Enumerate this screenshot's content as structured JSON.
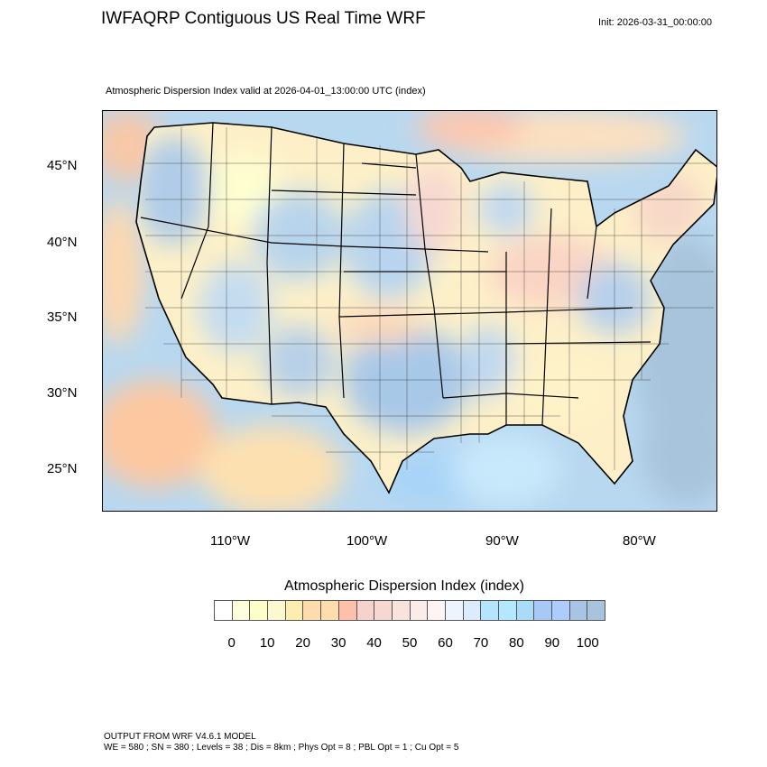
{
  "header": {
    "title": "IWFAQRP Contiguous US Real Time WRF",
    "init": "Init: 2026-03-31_00:00:00",
    "subtitle": "Atmospheric Dispersion Index valid at 2026-04-01_13:00:00 UTC   (index)"
  },
  "map": {
    "projection": "Lambert conformal",
    "lat_labels": [
      "45°N",
      "40°N",
      "35°N",
      "30°N",
      "25°N"
    ],
    "lon_labels": [
      "110°W",
      "100°W",
      "90°W",
      "80°W"
    ],
    "boundaries": [
      "coastlines",
      "state borders",
      "county borders",
      "national borders"
    ]
  },
  "colorbar": {
    "title": "Atmospheric Dispersion Index  (index)",
    "labels": [
      "0",
      "10",
      "20",
      "30",
      "40",
      "50",
      "60",
      "70",
      "80",
      "90",
      "100"
    ],
    "colors": [
      "#ffffff",
      "#fefedc",
      "#fefec8",
      "#fcf8d0",
      "#fdeeb0",
      "#fedcae",
      "#fedcac",
      "#fec0a8",
      "#f6d2cc",
      "#f6d8d0",
      "#f8e4dc",
      "#fcece8",
      "#fff4f4",
      "#eef4fe",
      "#dcecfe",
      "#b4e4fe",
      "#b4e8fe",
      "#a8dcf8",
      "#a8c8f8",
      "#acccfc",
      "#a8c4e4",
      "#a8c4dc"
    ]
  },
  "footer": {
    "line1": "OUTPUT FROM WRF V4.6.1 MODEL",
    "line2": "WE = 580 ; SN = 380 ; Levels = 38 ; Dis = 8km ; Phys Opt = 8 ; PBL Opt = 1 ; Cu Opt = 5"
  }
}
